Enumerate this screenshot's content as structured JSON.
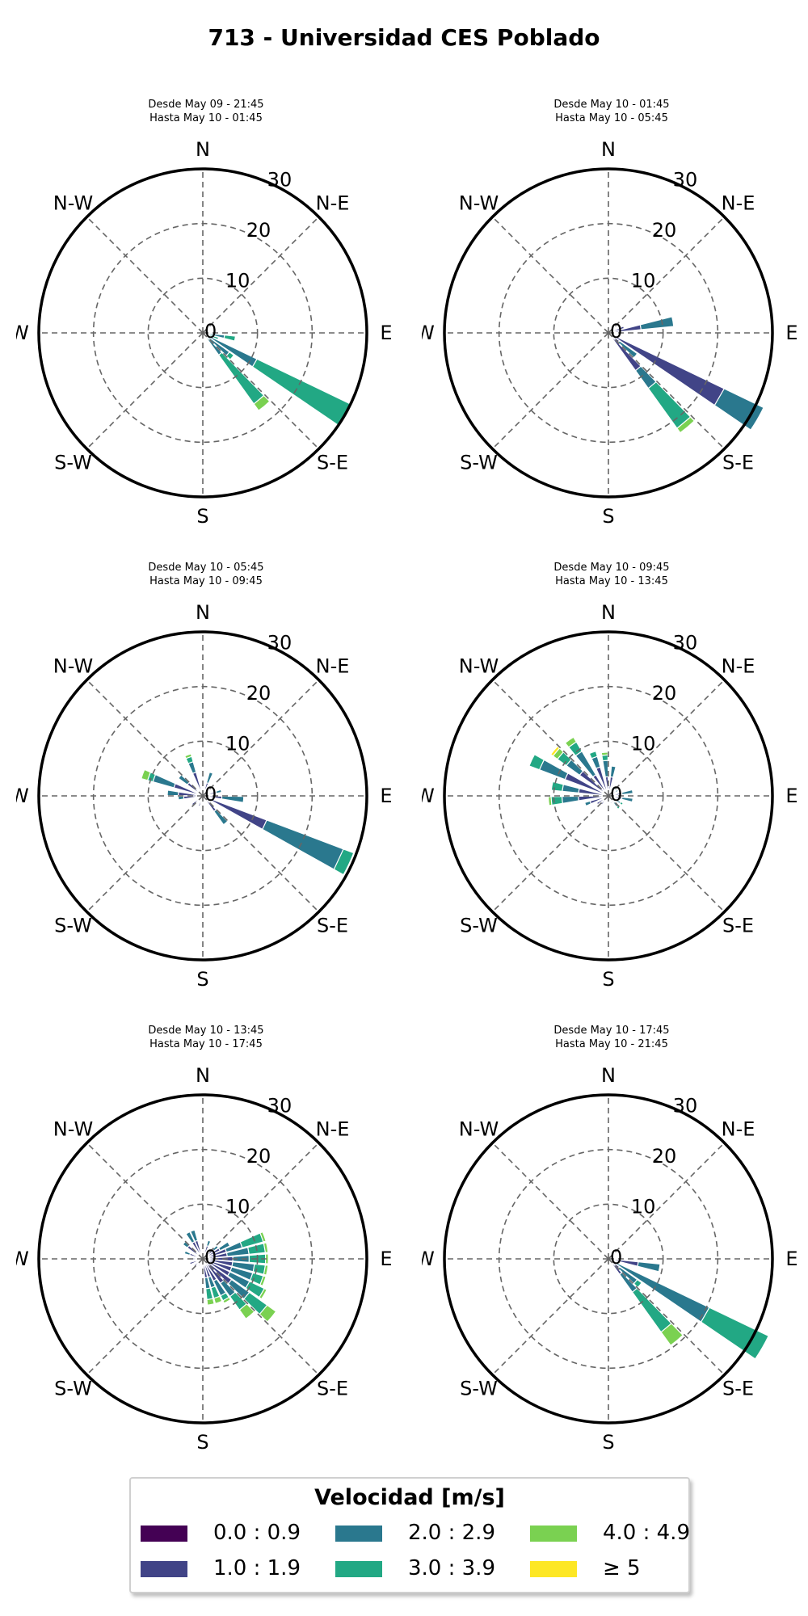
{
  "title": "713 - Universidad CES Poblado",
  "colors": {
    "bins": [
      "#440154",
      "#414487",
      "#2a788e",
      "#22a884",
      "#7ad151",
      "#fde725"
    ],
    "grid": "#666666",
    "frame": "#000000"
  },
  "legend": {
    "title": "Velocidad [m/s]",
    "items": [
      {
        "label": "0.0 : 0.9",
        "color": "#440154"
      },
      {
        "label": "1.0 : 1.9",
        "color": "#414487"
      },
      {
        "label": "2.0 : 2.9",
        "color": "#2a788e"
      },
      {
        "label": "3.0 : 3.9",
        "color": "#22a884"
      },
      {
        "label": "4.0 : 4.9",
        "color": "#7ad151"
      },
      {
        "label": "≥ 5",
        "color": "#fde725"
      }
    ]
  },
  "chart_data": [
    {
      "type": "windrose",
      "line1": "Desde May 09 - 21:45",
      "line2": "Hasta May 10 - 01:45",
      "radial_ticks": [
        "0",
        "10",
        "20",
        "30"
      ],
      "rmax": 30,
      "direction_labels": [
        "N",
        "N-E",
        "E",
        "S-E",
        "S",
        "S-W",
        "W",
        "N-W"
      ],
      "bars": [
        {
          "dir": 100,
          "segments": [
            0,
            1,
            3,
            2,
            0,
            0
          ]
        },
        {
          "dir": 110,
          "segments": [
            0,
            0,
            1,
            2,
            0,
            0
          ]
        },
        {
          "dir": 120,
          "segments": [
            0,
            1,
            10,
            19,
            0,
            0
          ]
        },
        {
          "dir": 140,
          "segments": [
            0,
            1,
            4,
            11,
            1.5,
            0
          ]
        },
        {
          "dir": 130,
          "segments": [
            0,
            1,
            5,
            1,
            0,
            0
          ]
        }
      ]
    },
    {
      "type": "windrose",
      "line1": "Desde May 10 - 01:45",
      "line2": "Hasta May 10 - 05:45",
      "radial_ticks": [
        "0",
        "10",
        "20",
        "30"
      ],
      "rmax": 30,
      "direction_labels": [
        "N",
        "N-E",
        "E",
        "S-E",
        "S",
        "S-W",
        "W",
        "N-W"
      ],
      "bars": [
        {
          "dir": 80,
          "segments": [
            1,
            5,
            6,
            0,
            0,
            0
          ]
        },
        {
          "dir": 70,
          "segments": [
            1,
            2,
            0,
            0,
            0,
            0
          ]
        },
        {
          "dir": 120,
          "segments": [
            0.5,
            23,
            8,
            0,
            0,
            0
          ]
        },
        {
          "dir": 140,
          "segments": [
            0.5,
            8,
            4,
            9,
            1,
            0
          ]
        },
        {
          "dir": 130,
          "segments": [
            0.5,
            2,
            4,
            0,
            0,
            0
          ]
        }
      ]
    },
    {
      "type": "windrose",
      "line1": "Desde May 10 - 05:45",
      "line2": "Hasta May 10 - 09:45",
      "radial_ticks": [
        "0",
        "10",
        "20",
        "30"
      ],
      "rmax": 30,
      "direction_labels": [
        "N",
        "N-E",
        "E",
        "S-E",
        "S",
        "S-W",
        "W",
        "N-W"
      ],
      "bars": [
        {
          "dir": 115,
          "segments": [
            0.5,
            12,
            15,
            2,
            0,
            0
          ]
        },
        {
          "dir": 140,
          "segments": [
            0.5,
            3,
            3,
            0,
            0,
            0
          ]
        },
        {
          "dir": 95,
          "segments": [
            0.5,
            3,
            4,
            0,
            0,
            0
          ]
        },
        {
          "dir": 75,
          "segments": [
            0.5,
            2,
            1,
            0,
            0,
            0
          ]
        },
        {
          "dir": 290,
          "segments": [
            0.5,
            5,
            4,
            1,
            1.2,
            0
          ]
        },
        {
          "dir": 275,
          "segments": [
            0.5,
            4,
            2,
            0,
            0,
            0
          ]
        },
        {
          "dir": 265,
          "segments": [
            0.5,
            3,
            1,
            0,
            0,
            0
          ]
        },
        {
          "dir": 310,
          "segments": [
            0.5,
            3,
            2,
            0,
            0,
            0
          ]
        },
        {
          "dir": 340,
          "segments": [
            0.5,
            4,
            2,
            1,
            0.5,
            0
          ]
        },
        {
          "dir": 20,
          "segments": [
            0.5,
            2,
            2,
            0,
            0,
            0
          ]
        },
        {
          "dir": 230,
          "segments": [
            0.5,
            2,
            0,
            0,
            0,
            0
          ]
        },
        {
          "dir": 200,
          "segments": [
            0.5,
            1.5,
            0,
            0,
            0,
            0
          ]
        }
      ]
    },
    {
      "type": "windrose",
      "line1": "Desde May 10 - 09:45",
      "line2": "Hasta May 10 - 13:45",
      "radial_ticks": [
        "0",
        "10",
        "20",
        "30"
      ],
      "rmax": 30,
      "direction_labels": [
        "N",
        "N-E",
        "E",
        "S-E",
        "S",
        "S-W",
        "W",
        "N-W"
      ],
      "bars": [
        {
          "dir": 295,
          "segments": [
            0.5,
            8,
            5,
            2,
            0,
            0
          ]
        },
        {
          "dir": 310,
          "segments": [
            0.5,
            6,
            3,
            2,
            1,
            0.5
          ]
        },
        {
          "dir": 325,
          "segments": [
            0.5,
            4,
            5,
            2,
            1,
            0
          ]
        },
        {
          "dir": 340,
          "segments": [
            0.5,
            5,
            2,
            1,
            0,
            0
          ]
        },
        {
          "dir": 355,
          "segments": [
            0.5,
            3,
            3,
            1,
            0.5,
            0
          ]
        },
        {
          "dir": 10,
          "segments": [
            0.5,
            3,
            2,
            0,
            0,
            0
          ]
        },
        {
          "dir": 280,
          "segments": [
            0.5,
            5,
            3,
            2,
            0,
            0
          ]
        },
        {
          "dir": 265,
          "segments": [
            0.5,
            5,
            3,
            2,
            0.5,
            0
          ]
        },
        {
          "dir": 250,
          "segments": [
            0.5,
            3,
            1,
            0,
            0,
            0
          ]
        },
        {
          "dir": 235,
          "segments": [
            0.5,
            2,
            0,
            0,
            0,
            0
          ]
        },
        {
          "dir": 220,
          "segments": [
            0.5,
            1.5,
            0,
            0,
            0,
            0
          ]
        },
        {
          "dir": 80,
          "segments": [
            0.5,
            2,
            2,
            0,
            0,
            0
          ]
        },
        {
          "dir": 100,
          "segments": [
            0.5,
            2,
            2,
            0,
            0,
            0
          ]
        },
        {
          "dir": 120,
          "segments": [
            0.5,
            1,
            1,
            0.5,
            0,
            0
          ]
        },
        {
          "dir": 140,
          "segments": [
            0.5,
            1,
            1,
            0.5,
            0,
            0
          ]
        },
        {
          "dir": 160,
          "segments": [
            0.5,
            1,
            0,
            0,
            0,
            0
          ]
        },
        {
          "dir": 40,
          "segments": [
            0.5,
            1,
            0.5,
            0,
            0,
            0
          ]
        },
        {
          "dir": 60,
          "segments": [
            0.5,
            1,
            0.5,
            0,
            0,
            0
          ]
        }
      ]
    },
    {
      "type": "windrose",
      "line1": "Desde May 10 - 13:45",
      "line2": "Hasta May 10 - 17:45",
      "radial_ticks": [
        "0",
        "10",
        "20",
        "30"
      ],
      "rmax": 30,
      "direction_labels": [
        "N",
        "N-E",
        "E",
        "S-E",
        "S",
        "S-W",
        "W",
        "N-W"
      ],
      "bars": [
        {
          "dir": 70,
          "segments": [
            0.5,
            4,
            3,
            4,
            0.5,
            0
          ]
        },
        {
          "dir": 80,
          "segments": [
            0.5,
            4,
            4,
            3,
            0.5,
            0
          ]
        },
        {
          "dir": 90,
          "segments": [
            0.5,
            5,
            3,
            3,
            0.5,
            0
          ]
        },
        {
          "dir": 100,
          "segments": [
            0.5,
            5,
            4,
            2,
            0.5,
            0
          ]
        },
        {
          "dir": 110,
          "segments": [
            0.5,
            5,
            4,
            2,
            0.5,
            0
          ]
        },
        {
          "dir": 120,
          "segments": [
            0.5,
            5,
            4,
            3,
            0.5,
            0
          ]
        },
        {
          "dir": 130,
          "segments": [
            0.5,
            6,
            4,
            4,
            2,
            0
          ]
        },
        {
          "dir": 140,
          "segments": [
            0.5,
            5,
            3,
            3,
            2,
            0
          ]
        },
        {
          "dir": 150,
          "segments": [
            0.5,
            4,
            3,
            1,
            0.5,
            0
          ]
        },
        {
          "dir": 160,
          "segments": [
            0.5,
            3,
            2,
            2,
            1,
            0
          ]
        },
        {
          "dir": 170,
          "segments": [
            0.5,
            3,
            2,
            2,
            1,
            0
          ]
        },
        {
          "dir": 60,
          "segments": [
            0.5,
            3,
            2,
            0,
            0,
            0
          ]
        },
        {
          "dir": 50,
          "segments": [
            0.5,
            2,
            1,
            0,
            0,
            0
          ]
        },
        {
          "dir": 340,
          "segments": [
            0.5,
            3,
            2,
            0,
            0,
            0
          ]
        },
        {
          "dir": 330,
          "segments": [
            0.5,
            3,
            2,
            0,
            0,
            0
          ]
        },
        {
          "dir": 310,
          "segments": [
            0.5,
            3,
            1,
            0,
            0,
            0
          ]
        },
        {
          "dir": 290,
          "segments": [
            0.5,
            2,
            1,
            0,
            0,
            0
          ]
        },
        {
          "dir": 270,
          "segments": [
            0.5,
            2,
            0,
            0,
            0,
            0
          ]
        },
        {
          "dir": 250,
          "segments": [
            0.5,
            2,
            0,
            0,
            0,
            0
          ]
        },
        {
          "dir": 230,
          "segments": [
            0.5,
            1.5,
            0,
            0,
            0,
            0
          ]
        },
        {
          "dir": 210,
          "segments": [
            0.5,
            1,
            0,
            0,
            0,
            0
          ]
        },
        {
          "dir": 20,
          "segments": [
            0.5,
            2,
            1,
            0,
            0,
            0
          ]
        },
        {
          "dir": 10,
          "segments": [
            0.5,
            1,
            0,
            0,
            0,
            0
          ]
        }
      ]
    },
    {
      "type": "windrose",
      "line1": "Desde May 10 - 17:45",
      "line2": "Hasta May 10 - 21:45",
      "radial_ticks": [
        "0",
        "10",
        "20",
        "30"
      ],
      "rmax": 30,
      "direction_labels": [
        "N",
        "N-E",
        "E",
        "S-E",
        "S",
        "S-W",
        "W",
        "N-W"
      ],
      "bars": [
        {
          "dir": 100,
          "segments": [
            0.5,
            5,
            4,
            0,
            0,
            0
          ]
        },
        {
          "dir": 120,
          "segments": [
            0.5,
            1,
            19,
            12,
            0,
            0
          ]
        },
        {
          "dir": 140,
          "segments": [
            0.5,
            3,
            4,
            9,
            3,
            0
          ]
        },
        {
          "dir": 130,
          "segments": [
            0.5,
            2,
            4,
            1,
            0,
            0
          ]
        }
      ]
    }
  ]
}
